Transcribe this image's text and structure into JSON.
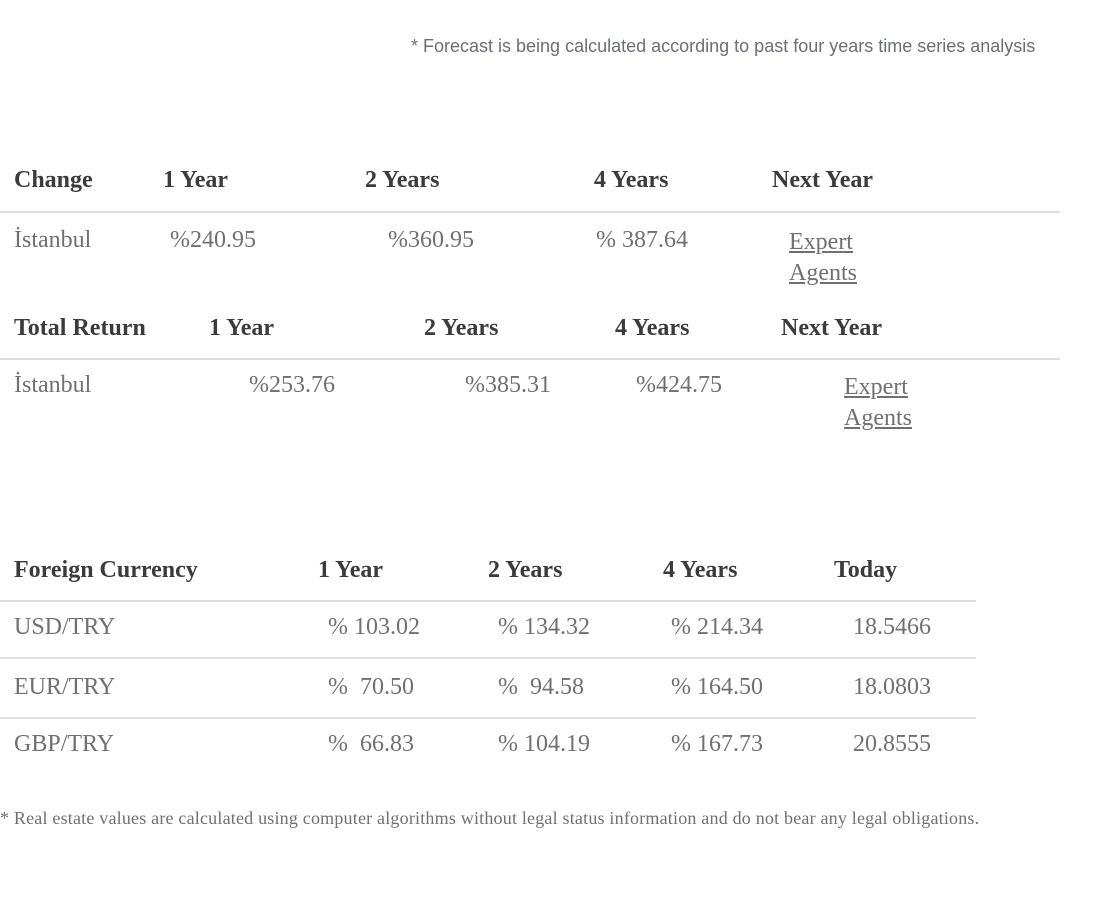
{
  "forecast_note": "* Forecast is being calculated according to past four years time series analysis",
  "change_table": {
    "headers": [
      "Change",
      "1 Year",
      "2 Years",
      "4 Years",
      "Next Year"
    ],
    "row": {
      "city": "İstanbul",
      "y1": "%240.95",
      "y2": "%360.95",
      "y4": "% 387.64",
      "link_line1": "Expert",
      "link_line2": "Agents"
    }
  },
  "total_return_table": {
    "headers": [
      "Total Return",
      "1 Year",
      "2 Years",
      "4 Years",
      "Next Year"
    ],
    "row": {
      "city": "İstanbul",
      "y1": "%253.76",
      "y2": "%385.31",
      "y4": "%424.75",
      "link_line1": "Expert",
      "link_line2": "Agents"
    }
  },
  "currency_table": {
    "headers": [
      "Foreign Currency",
      "1 Year",
      "2 Years",
      "4 Years",
      "Today"
    ],
    "rows": [
      {
        "pair": "USD/TRY",
        "y1": "% 103.02",
        "y2": "% 134.32",
        "y4": "% 214.34",
        "today": "18.5466"
      },
      {
        "pair": "EUR/TRY",
        "y1": "%  70.50",
        "y2": "%  94.58",
        "y4": "% 164.50",
        "today": "18.0803"
      },
      {
        "pair": "GBP/TRY",
        "y1": "%  66.83",
        "y2": "% 104.19",
        "y4": "% 167.73",
        "today": "20.8555"
      }
    ]
  },
  "disclaimer": "* Real estate values are calculated using computer algorithms without legal status information and do not bear any legal obligations."
}
